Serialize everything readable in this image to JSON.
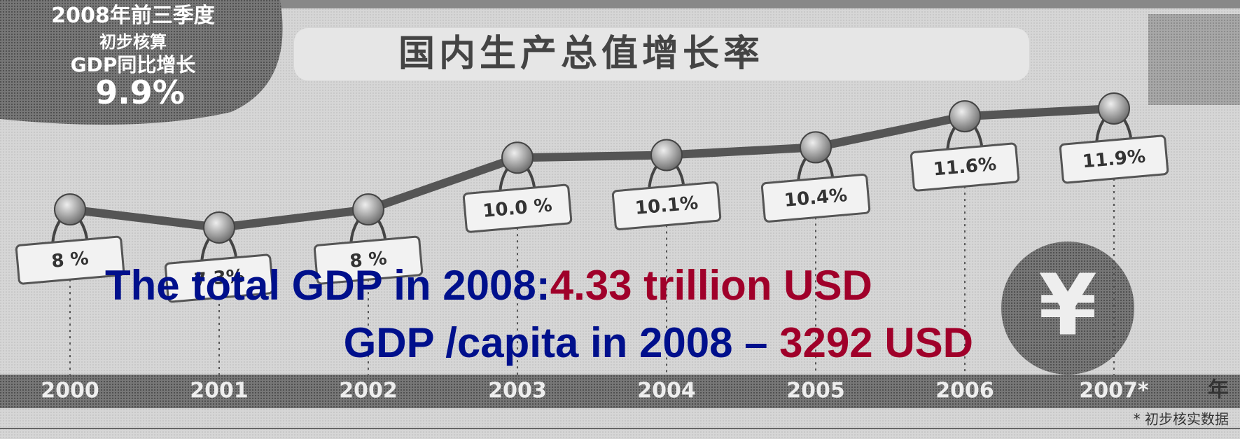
{
  "chart_data": {
    "type": "line",
    "title": "国内生产总值增长率",
    "badge": [
      "2008年前三季度",
      "初步核算",
      "GDP同比增长",
      "9.9%"
    ],
    "categories": [
      "2000",
      "2001",
      "2002",
      "2003",
      "2004",
      "2005",
      "2006",
      "2007*"
    ],
    "values": [
      8,
      7.3,
      8,
      10.0,
      10.1,
      10.4,
      11.6,
      11.9
    ],
    "value_labels": [
      "8 %",
      "7.3%",
      "8 %",
      "10.0 %",
      "10.1%",
      "10.4%",
      "11.6%",
      "11.9%"
    ],
    "x_unit": "年",
    "footnote": "* 初步核实数据",
    "color": "#555555",
    "annotations": [
      {
        "lead": "The total GDP in 2008:",
        "value": "4.33 trillion USD"
      },
      {
        "lead": "GDP /capita in 2008 – ",
        "value": "3292 USD"
      }
    ]
  }
}
